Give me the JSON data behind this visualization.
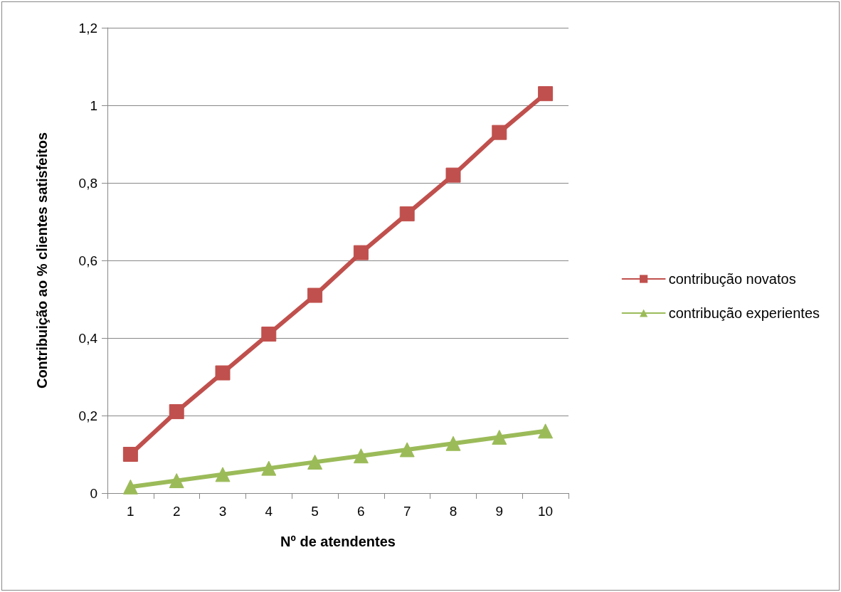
{
  "chart_data": {
    "type": "line",
    "xlabel": "Nº de atendentes",
    "ylabel": "Contribuição ao % clientes satisfeitos",
    "categories": [
      "1",
      "2",
      "3",
      "4",
      "5",
      "6",
      "7",
      "8",
      "9",
      "10"
    ],
    "series": [
      {
        "name": "contribução novatos",
        "color": "#c0504d",
        "marker": "square",
        "values": [
          0.1,
          0.21,
          0.31,
          0.41,
          0.51,
          0.62,
          0.72,
          0.82,
          0.93,
          1.03
        ]
      },
      {
        "name": "contribução experientes",
        "color": "#9bbb59",
        "marker": "triangle",
        "values": [
          0.016,
          0.032,
          0.048,
          0.064,
          0.08,
          0.096,
          0.112,
          0.128,
          0.144,
          0.16
        ]
      }
    ],
    "ylim": [
      0,
      1.2
    ],
    "yticks": [
      0,
      {
        "value": 0.2,
        "label": "0,2"
      },
      {
        "value": 0.4,
        "label": "0,4"
      },
      {
        "value": 0.6,
        "label": "0,6"
      },
      {
        "value": 0.8,
        "label": "0,8"
      },
      1,
      {
        "value": 1.2,
        "label": "1,2"
      }
    ],
    "grid": "y",
    "legend": "right",
    "line_style": "solid"
  }
}
